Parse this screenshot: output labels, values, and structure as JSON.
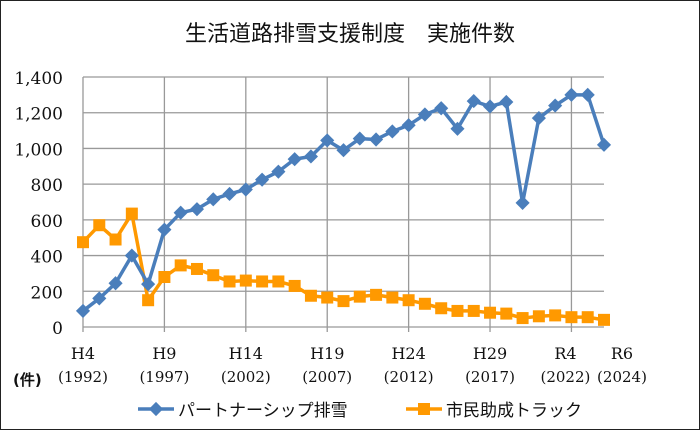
{
  "chart_data": {
    "type": "line",
    "title": "生活道路排雪支援制度　実施件数",
    "ylabel": "(件)",
    "ylim": [
      0,
      1400
    ],
    "yticks": [
      "0",
      "200",
      "400",
      "600",
      "800",
      "1,000",
      "1,200",
      "1,400"
    ],
    "xlim": [
      1992,
      2024
    ],
    "xticks": [
      {
        "year": 1992,
        "era": "H4",
        "label": "(1992)"
      },
      {
        "year": 1997,
        "era": "H9",
        "label": "(1997)"
      },
      {
        "year": 2002,
        "era": "H14",
        "label": "(2002)"
      },
      {
        "year": 2007,
        "era": "H19",
        "label": "(2007)"
      },
      {
        "year": 2012,
        "era": "H24",
        "label": "(2012)"
      },
      {
        "year": 2017,
        "era": "H29",
        "label": "(2017)"
      },
      {
        "year": 2022,
        "era": "R4",
        "label": "(2022)"
      },
      {
        "year": 2024,
        "era": "R6",
        "label": "(2024)"
      }
    ],
    "grid": true,
    "legend_position": "bottom",
    "x": [
      1992,
      1993,
      1994,
      1995,
      1996,
      1997,
      1998,
      1999,
      2000,
      2001,
      2002,
      2003,
      2004,
      2005,
      2006,
      2007,
      2008,
      2009,
      2010,
      2011,
      2012,
      2013,
      2014,
      2015,
      2016,
      2017,
      2018,
      2019,
      2020,
      2021,
      2022,
      2023,
      2024
    ],
    "series": [
      {
        "name": "パートナーシップ排雪",
        "color": "#4a7ebb",
        "marker": "diamond",
        "values": [
          90,
          160,
          245,
          400,
          240,
          545,
          640,
          660,
          715,
          745,
          770,
          825,
          870,
          940,
          955,
          1045,
          990,
          1055,
          1050,
          1095,
          1130,
          1190,
          1225,
          1110,
          1265,
          1235,
          1260,
          695,
          1170,
          1240,
          1300,
          1300,
          1020
        ]
      },
      {
        "name": "市民助成トラック",
        "color": "#ff9900",
        "marker": "square",
        "values": [
          475,
          570,
          490,
          635,
          150,
          280,
          345,
          325,
          290,
          255,
          260,
          255,
          255,
          230,
          175,
          165,
          145,
          170,
          180,
          165,
          150,
          130,
          105,
          90,
          90,
          80,
          75,
          50,
          60,
          65,
          55,
          55,
          40
        ]
      }
    ]
  }
}
